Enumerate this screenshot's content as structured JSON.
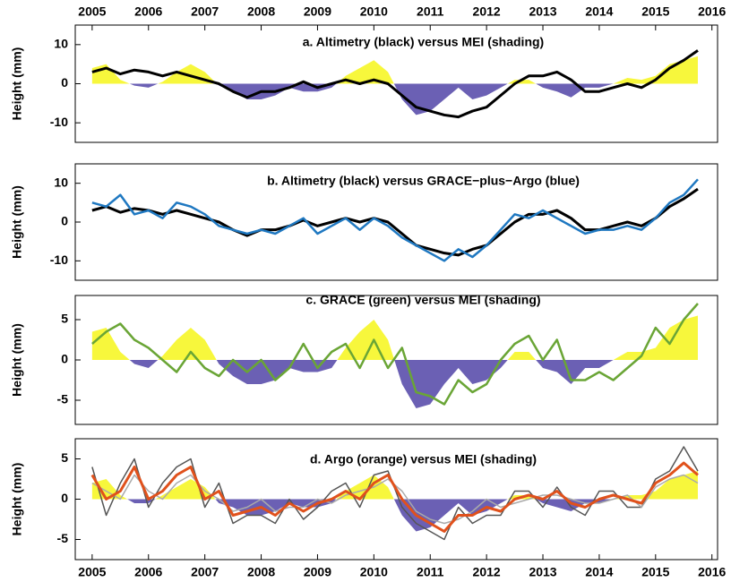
{
  "chart_data": [
    {
      "type": "line",
      "title": "a. Altimetry (black) versus MEI (shading)",
      "y_label": "Height (mm)",
      "x": [
        2005,
        2005.25,
        2005.5,
        2005.75,
        2006,
        2006.25,
        2006.5,
        2006.75,
        2007,
        2007.25,
        2007.5,
        2007.75,
        2008,
        2008.25,
        2008.5,
        2008.75,
        2009,
        2009.25,
        2009.5,
        2009.75,
        2010,
        2010.25,
        2010.5,
        2010.75,
        2011,
        2011.25,
        2011.5,
        2011.75,
        2012,
        2012.25,
        2012.5,
        2012.75,
        2013,
        2013.25,
        2013.5,
        2013.75,
        2014,
        2014.25,
        2014.5,
        2014.75,
        2015,
        2015.25,
        2015.5,
        2015.75
      ],
      "xlim": [
        2004.7,
        2016.1
      ],
      "xticks": [
        2005,
        2006,
        2007,
        2008,
        2009,
        2010,
        2011,
        2012,
        2013,
        2014,
        2015,
        2016
      ],
      "xaxis_position": "top",
      "ylim": [
        -15,
        15
      ],
      "yticks": [
        -10,
        0,
        10
      ],
      "series": [
        {
          "style": "shading",
          "color": "#f7f73c",
          "color_negative": "#6b60b4",
          "values": [
            4,
            5,
            1,
            -0.5,
            -1,
            0.5,
            3,
            5,
            3,
            -0.5,
            -2,
            -4,
            -4,
            -3,
            -1,
            -2,
            -2,
            -1,
            2,
            4,
            6,
            3,
            -4,
            -8,
            -7,
            -4,
            -1,
            -4,
            -3,
            -1,
            1,
            1,
            -1,
            -2,
            -3.5,
            -1,
            -1,
            0,
            1.5,
            1,
            2,
            5,
            6,
            7
          ]
        },
        {
          "style": "line",
          "color": "#000000",
          "width": 3,
          "values": [
            3,
            4,
            2.5,
            3.5,
            3,
            2,
            3,
            2,
            1,
            0,
            -2,
            -3.5,
            -2,
            -2,
            -1,
            0.5,
            -1,
            0,
            1,
            0,
            1,
            0,
            -3,
            -6,
            -7,
            -8,
            -8.5,
            -7,
            -6,
            -3,
            0,
            2,
            2,
            3,
            1,
            -2,
            -2,
            -1,
            0,
            -1,
            1,
            4,
            6,
            8.5
          ]
        }
      ]
    },
    {
      "type": "line",
      "title": "b. Altimetry (black) versus GRACE−plus−Argo (blue)",
      "y_label": "Height (mm)",
      "x": [
        2005,
        2005.25,
        2005.5,
        2005.75,
        2006,
        2006.25,
        2006.5,
        2006.75,
        2007,
        2007.25,
        2007.5,
        2007.75,
        2008,
        2008.25,
        2008.5,
        2008.75,
        2009,
        2009.25,
        2009.5,
        2009.75,
        2010,
        2010.25,
        2010.5,
        2010.75,
        2011,
        2011.25,
        2011.5,
        2011.75,
        2012,
        2012.25,
        2012.5,
        2012.75,
        2013,
        2013.25,
        2013.5,
        2013.75,
        2014,
        2014.25,
        2014.5,
        2014.75,
        2015,
        2015.25,
        2015.5,
        2015.75
      ],
      "xlim": [
        2004.7,
        2016.1
      ],
      "ylim": [
        -15,
        15
      ],
      "yticks": [
        -10,
        0,
        10
      ],
      "series": [
        {
          "style": "line",
          "color": "#000000",
          "width": 3,
          "values": [
            3,
            4,
            2.5,
            3.5,
            3,
            2,
            3,
            2,
            1,
            0,
            -2,
            -3.5,
            -2,
            -2,
            -1,
            0.5,
            -1,
            0,
            1,
            0,
            1,
            0,
            -3,
            -6,
            -7,
            -8,
            -8.5,
            -7,
            -6,
            -3,
            0,
            2,
            2,
            3,
            1,
            -2,
            -2,
            -1,
            0,
            -1,
            1,
            4,
            6,
            8.5
          ]
        },
        {
          "style": "line",
          "color": "#1f78c1",
          "width": 2.5,
          "values": [
            5,
            4,
            7,
            2,
            3,
            1,
            5,
            4,
            2,
            -1,
            -2,
            -3,
            -2,
            -3,
            -1,
            1,
            -3,
            -1,
            1,
            -2,
            1,
            -1,
            -4,
            -6,
            -8,
            -10,
            -7,
            -9,
            -6,
            -2,
            2,
            1,
            3,
            1,
            -1,
            -3,
            -2,
            -2,
            -1,
            -2,
            1,
            5,
            7,
            11
          ]
        }
      ]
    },
    {
      "type": "line",
      "title": "c. GRACE (green) versus MEI (shading)",
      "y_label": "Height (mm)",
      "x": [
        2005,
        2005.25,
        2005.5,
        2005.75,
        2006,
        2006.25,
        2006.5,
        2006.75,
        2007,
        2007.25,
        2007.5,
        2007.75,
        2008,
        2008.25,
        2008.5,
        2008.75,
        2009,
        2009.25,
        2009.5,
        2009.75,
        2010,
        2010.25,
        2010.5,
        2010.75,
        2011,
        2011.25,
        2011.5,
        2011.75,
        2012,
        2012.25,
        2012.5,
        2012.75,
        2013,
        2013.25,
        2013.5,
        2013.75,
        2014,
        2014.25,
        2014.5,
        2014.75,
        2015,
        2015.25,
        2015.5,
        2015.75
      ],
      "xlim": [
        2004.7,
        2016.1
      ],
      "ylim": [
        -8,
        8
      ],
      "yticks": [
        -5,
        0,
        5
      ],
      "series": [
        {
          "style": "shading",
          "color": "#f7f73c",
          "color_negative": "#6b60b4",
          "values": [
            3.5,
            4,
            1,
            -0.5,
            -1,
            0.5,
            2.5,
            4,
            2.5,
            -0.5,
            -2,
            -3,
            -3,
            -2.5,
            -1,
            -1.5,
            -1.5,
            -1,
            1.5,
            3.5,
            5,
            2.5,
            -3,
            -6,
            -5.5,
            -3,
            -1,
            -3,
            -2.5,
            -1,
            1,
            1,
            -1,
            -1.5,
            -3,
            -1,
            -1,
            0,
            1,
            1,
            1.5,
            4,
            5,
            5.5
          ]
        },
        {
          "style": "line",
          "color": "#6aa536",
          "width": 2.5,
          "values": [
            2,
            3.5,
            4.5,
            2.5,
            1.5,
            0,
            -1.5,
            1,
            -1,
            -2,
            0,
            -1.5,
            0,
            -2.5,
            -1,
            2,
            -1,
            1,
            2,
            -1,
            2.5,
            -1,
            1.5,
            -4,
            -4.5,
            -5.5,
            -2.5,
            -4,
            -3,
            0,
            2,
            3,
            0,
            2.5,
            -2.5,
            -2.5,
            -1.5,
            -2.5,
            -1,
            0.5,
            4,
            2,
            5,
            7
          ]
        }
      ]
    },
    {
      "type": "line",
      "title": "d. Argo (orange) versus MEI (shading)",
      "y_label": "Height (mm)",
      "x": [
        2005,
        2005.25,
        2005.5,
        2005.75,
        2006,
        2006.25,
        2006.5,
        2006.75,
        2007,
        2007.25,
        2007.5,
        2007.75,
        2008,
        2008.25,
        2008.5,
        2008.75,
        2009,
        2009.25,
        2009.5,
        2009.75,
        2010,
        2010.25,
        2010.5,
        2010.75,
        2011,
        2011.25,
        2011.5,
        2011.75,
        2012,
        2012.25,
        2012.5,
        2012.75,
        2013,
        2013.25,
        2013.5,
        2013.75,
        2014,
        2014.25,
        2014.5,
        2014.75,
        2015,
        2015.25,
        2015.5,
        2015.75
      ],
      "xlim": [
        2004.7,
        2016.1
      ],
      "xticks": [
        2005,
        2006,
        2007,
        2008,
        2009,
        2010,
        2011,
        2012,
        2013,
        2014,
        2015,
        2016
      ],
      "xaxis_position": "bottom",
      "ylim": [
        -7.5,
        7.5
      ],
      "yticks": [
        -5,
        0,
        5
      ],
      "series": [
        {
          "style": "shading",
          "color": "#f7f73c",
          "color_negative": "#6b60b4",
          "values": [
            2,
            2.5,
            0.5,
            -0.5,
            -0.5,
            0.5,
            1.5,
            2.5,
            1.5,
            -0.5,
            -1,
            -2,
            -2,
            -1.5,
            -0.5,
            -1,
            -1,
            -0.5,
            1,
            2,
            3,
            1.5,
            -2,
            -4,
            -3.5,
            -2,
            -0.5,
            -2,
            -1.5,
            -0.5,
            0.5,
            0.5,
            -0.5,
            -1,
            -1.5,
            -0.5,
            -0.5,
            0,
            0.5,
            0.5,
            1,
            2.5,
            3,
            3.5
          ]
        },
        {
          "style": "line",
          "color": "#555555",
          "width": 1.5,
          "values": [
            4,
            -2,
            2,
            5,
            -1,
            2,
            4,
            5,
            -1,
            2,
            -3,
            -2,
            -2,
            -3,
            0,
            -2.5,
            -1,
            1,
            2,
            -1,
            3,
            3.5,
            -1,
            -3,
            -4,
            -5,
            -1,
            -3,
            -2,
            -2,
            1,
            1,
            -1,
            1.5,
            -1,
            -2,
            1,
            1,
            -1,
            -1,
            2.5,
            3.5,
            6.5,
            3.5
          ]
        },
        {
          "style": "line",
          "color": "#aaaaaa",
          "width": 1.5,
          "values": [
            2,
            1,
            0,
            3,
            1,
            0,
            2,
            3,
            1,
            0,
            -1.5,
            -1,
            0,
            -1.5,
            -1,
            -1,
            0,
            -0.5,
            0.5,
            1,
            1.5,
            2.5,
            1,
            -1.5,
            -2.5,
            -3,
            -2.5,
            -1.5,
            0,
            -1,
            -0.5,
            0,
            0.5,
            0.5,
            0,
            -0.5,
            -0.5,
            0,
            0.5,
            -1,
            1.5,
            2.5,
            3,
            2
          ]
        },
        {
          "style": "line",
          "color": "#e0511c",
          "width": 3,
          "values": [
            3,
            0,
            1,
            4,
            0,
            1,
            3,
            4,
            0,
            1,
            -2,
            -1.5,
            -1,
            -2,
            -0.5,
            -1.5,
            -0.5,
            0,
            1,
            0,
            2,
            3,
            0,
            -2,
            -3,
            -4,
            -2,
            -2,
            -1,
            -1.5,
            0,
            0.5,
            0,
            1,
            -0.5,
            -1,
            0,
            0.5,
            0,
            -0.5,
            2,
            3,
            4.5,
            3
          ]
        }
      ]
    }
  ]
}
